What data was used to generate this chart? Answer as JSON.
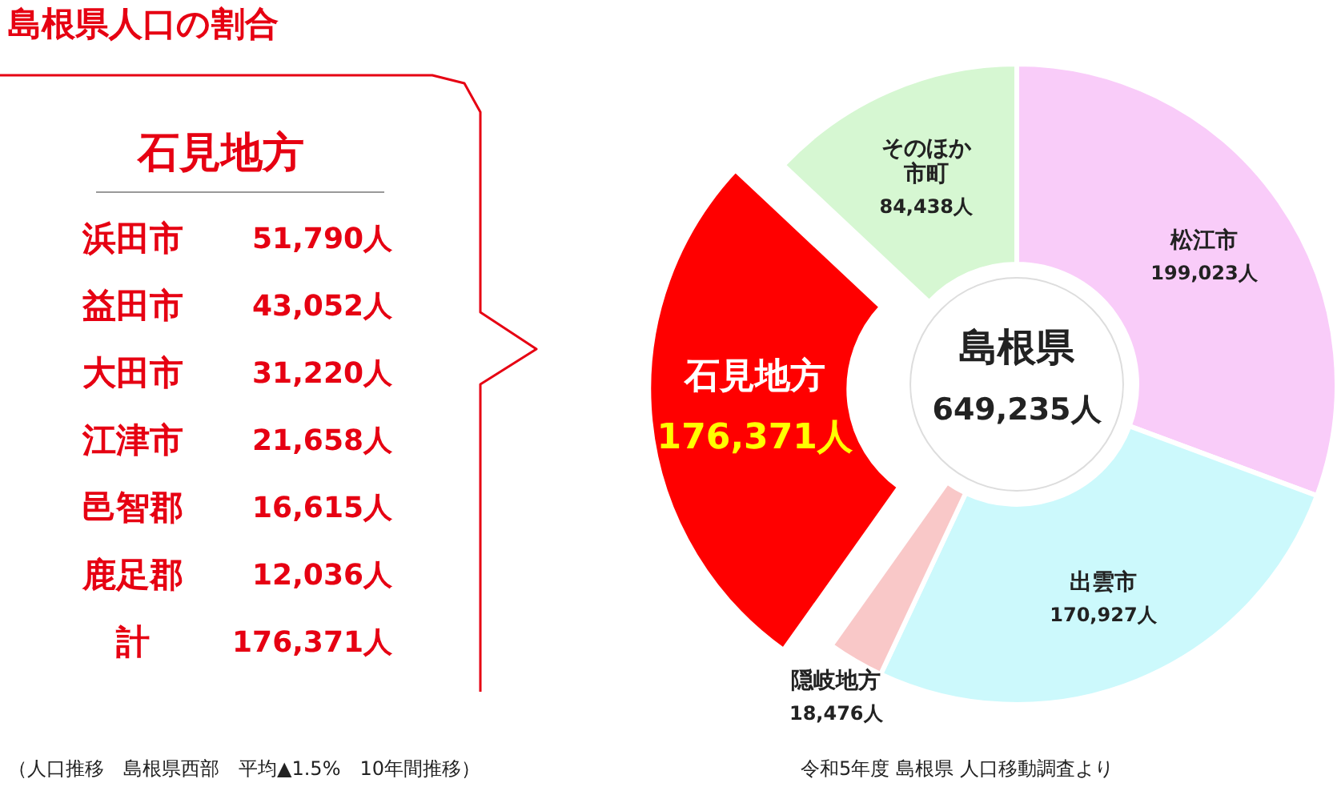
{
  "chart_data": {
    "type": "donut",
    "title": "島根県人口の割合",
    "categories": [
      "松江市",
      "出雲市",
      "隠岐地方",
      "石見地方",
      "そのほか市町"
    ],
    "values": [
      199023,
      170927,
      18476,
      176371,
      84438
    ],
    "colors": [
      "#f9ccf9",
      "#ccf9fc",
      "#f9c8c8",
      "#ff0000",
      "#d6f7d2"
    ],
    "value_labels": [
      "199,023人",
      "170,927人",
      "18,476人",
      "176,371人",
      "84,438人"
    ],
    "annotations": [
      "島根県",
      "649,235人",
      "石見地方",
      "浜田市",
      "51,790人",
      "益田市",
      "43,052人",
      "大田市",
      "31,220人",
      "江津市",
      "21,658人",
      "邑智郡",
      "16,615人",
      "鹿足郡",
      "12,036人",
      "計",
      "176,371人",
      "（人口推移　島根県西部　平均▲1.5%　10年間推移）",
      "令和5年度 島根県 人口移動調査より"
    ]
  }
}
